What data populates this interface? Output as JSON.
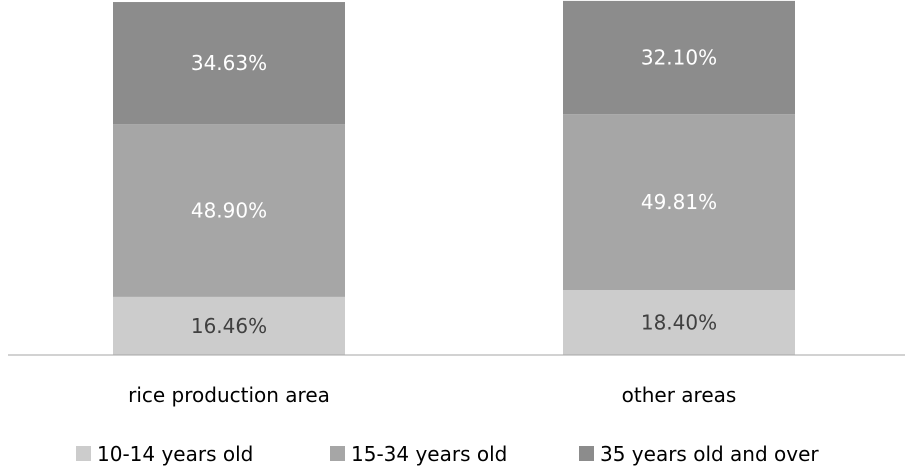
{
  "chart_data": {
    "type": "bar",
    "stacked": true,
    "percent_stacked": true,
    "categories": [
      "rice production area",
      "other areas"
    ],
    "series": [
      {
        "name": "10-14 years old",
        "values": [
          16.46,
          18.4
        ],
        "labels": [
          "16.46%",
          "18.40%"
        ],
        "color": "#cccccc",
        "label_color": "#404040"
      },
      {
        "name": "15-34 years old",
        "values": [
          48.9,
          49.81
        ],
        "labels": [
          "48.90%",
          "49.81%"
        ],
        "color": "#a6a6a6",
        "label_color": "#ffffff"
      },
      {
        "name": "35 years old and over",
        "values": [
          34.63,
          32.1
        ],
        "labels": [
          "34.63%",
          "32.10%"
        ],
        "color": "#8c8c8c",
        "label_color": "#ffffff"
      }
    ],
    "ylim": [
      0,
      100
    ],
    "grid": false,
    "legend_position": "bottom",
    "axis_color": "#a6a6a6",
    "text_color": "#000000"
  }
}
